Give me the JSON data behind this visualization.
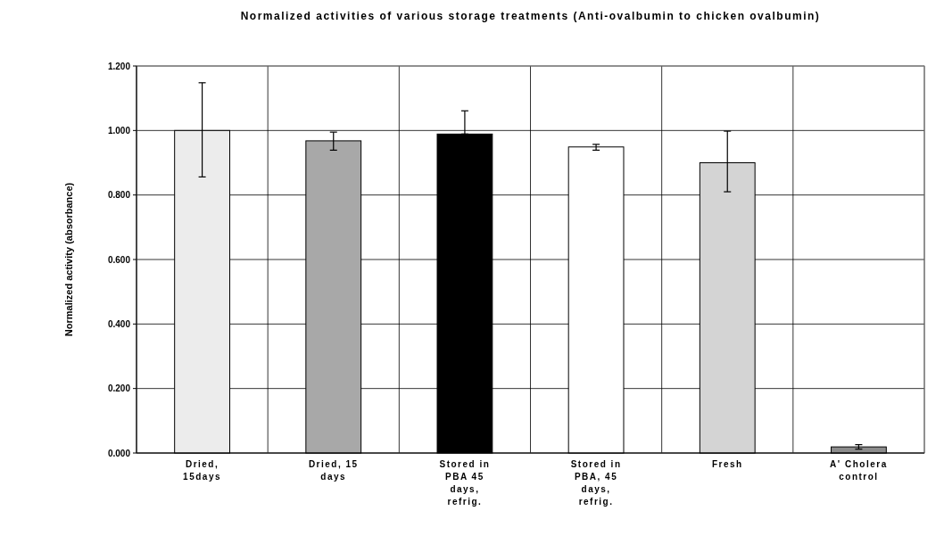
{
  "chart_data": {
    "type": "bar",
    "title": "Normalized activities of various storage treatments (Anti-ovalbumin to chicken ovalbumin)",
    "ylabel": "Normalized activity (absorbance)",
    "categories": [
      "Dried, 15days",
      "Dried, 15 days",
      "Stored in PBA 45 days, refrig.",
      "Stored in PBA, 45 days, refrig.",
      "Fresh",
      "A' Cholera control"
    ],
    "values": [
      1.0,
      0.968,
      0.989,
      0.949,
      0.9,
      0.019
    ],
    "colors": [
      "#ececec",
      "#a8a8a8",
      "#000000",
      "#ffffff",
      "#d4d4d4",
      "#8c8c8c"
    ],
    "errors": [
      [
        0.856,
        1.148
      ],
      [
        0.939,
        0.995
      ],
      [
        0.989,
        1.061
      ],
      [
        0.939,
        0.957
      ],
      [
        0.81,
        0.998
      ],
      [
        0.012,
        0.026
      ]
    ],
    "ylim": [
      0,
      1.2
    ],
    "yticks": [
      {
        "value": 0,
        "label": "0.000"
      },
      {
        "value": 0.2,
        "label": "0.200"
      },
      {
        "value": 0.4,
        "label": "0.400"
      },
      {
        "value": 0.6,
        "label": "0.600"
      },
      {
        "value": 0.8,
        "label": "0.800"
      },
      {
        "value": 1,
        "label": "1.000"
      },
      {
        "value": 1.2,
        "label": "1.200"
      }
    ],
    "grid": true
  }
}
